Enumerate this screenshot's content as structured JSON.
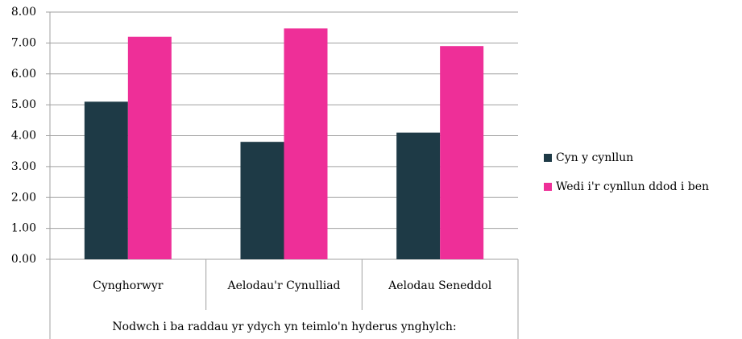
{
  "chart_data": {
    "type": "bar",
    "categories": [
      "Cynghorwyr",
      "Aelodau'r Cynulliad",
      "Aelodau Seneddol"
    ],
    "series": [
      {
        "name": "Cyn y cynllun",
        "color": "#1e3a46",
        "values": [
          5.1,
          3.8,
          4.1
        ]
      },
      {
        "name": "Wedi i'r cynllun ddod i ben",
        "color": "#ee2f98",
        "values": [
          7.2,
          7.47,
          6.9
        ]
      }
    ],
    "xlabel": "Nodwch i ba raddau yr ydych yn teimlo'n hyderus ynghylch:",
    "ylim": [
      0,
      8
    ],
    "yticks": [
      {
        "value": 0,
        "label": "0.00"
      },
      {
        "value": 1,
        "label": "1.00"
      },
      {
        "value": 2,
        "label": "2.00"
      },
      {
        "value": 3,
        "label": "3.00"
      },
      {
        "value": 4,
        "label": "4.00"
      },
      {
        "value": 5,
        "label": "5.00"
      },
      {
        "value": 6,
        "label": "6.00"
      },
      {
        "value": 7,
        "label": "7.00"
      },
      {
        "value": 8,
        "label": "8.00"
      }
    ],
    "grid": true,
    "legend": "right"
  }
}
